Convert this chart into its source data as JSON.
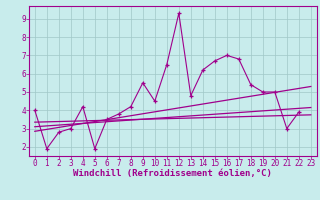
{
  "xlabel": "Windchill (Refroidissement éolien,°C)",
  "bg_color": "#c8ecec",
  "grid_color": "#a0c8c8",
  "line_color": "#a0008c",
  "xlim": [
    -0.5,
    23.5
  ],
  "ylim": [
    1.5,
    9.7
  ],
  "xticks": [
    0,
    1,
    2,
    3,
    4,
    5,
    6,
    7,
    8,
    9,
    10,
    11,
    12,
    13,
    14,
    15,
    16,
    17,
    18,
    19,
    20,
    21,
    22,
    23
  ],
  "yticks": [
    2,
    3,
    4,
    5,
    6,
    7,
    8,
    9
  ],
  "series1_x": [
    0,
    1,
    2,
    3,
    4,
    5,
    6,
    7,
    8,
    9,
    10,
    11,
    12,
    13,
    14,
    15,
    16,
    17,
    18,
    19,
    20,
    21,
    22
  ],
  "series1_y": [
    4.0,
    1.9,
    2.8,
    3.0,
    4.2,
    1.9,
    3.5,
    3.8,
    4.2,
    5.5,
    4.5,
    6.5,
    9.3,
    4.8,
    6.2,
    6.7,
    7.0,
    6.8,
    5.4,
    5.0,
    5.0,
    3.0,
    3.9
  ],
  "trend1_x": [
    0,
    23
  ],
  "trend1_y": [
    3.1,
    4.15
  ],
  "trend2_x": [
    0,
    23
  ],
  "trend2_y": [
    2.85,
    5.3
  ],
  "trend3_x": [
    0,
    23
  ],
  "trend3_y": [
    3.35,
    3.75
  ],
  "font_size_label": 6.5,
  "font_size_tick": 5.5,
  "tick_color": "#a0008c"
}
